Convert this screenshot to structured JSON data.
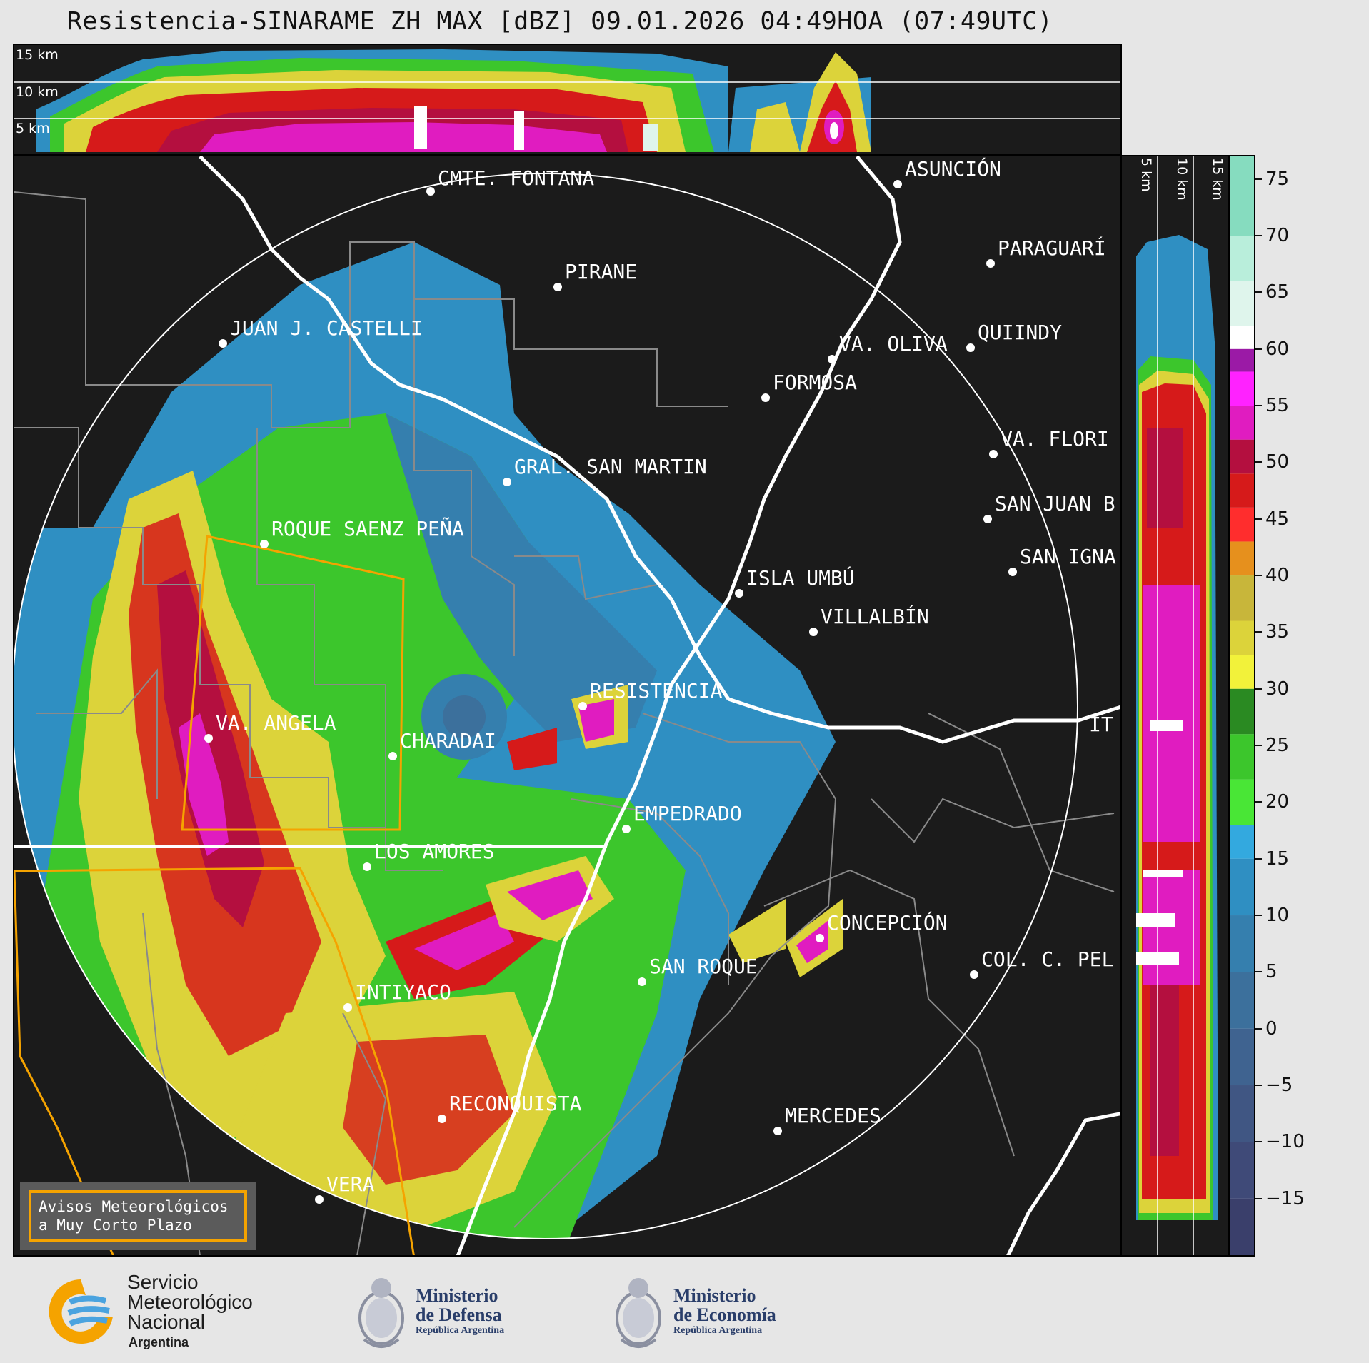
{
  "title": "Resistencia-SINARAME ZH MAX [dBZ] 09.01.2026 04:49HOA (07:49UTC)",
  "top_panel": {
    "altitude_labels": [
      "15 km",
      "10 km",
      "5 km"
    ]
  },
  "side_panel": {
    "altitude_labels": [
      "5 km",
      "10 km",
      "15 km"
    ]
  },
  "colorbar": {
    "unit": "dBZ",
    "ticks": [
      "75",
      "70",
      "65",
      "60",
      "55",
      "50",
      "45",
      "40",
      "35",
      "30",
      "25",
      "20",
      "15",
      "10",
      "5",
      "0",
      "−5",
      "−10",
      "−15"
    ],
    "tick_values": [
      75,
      70,
      65,
      60,
      55,
      50,
      45,
      40,
      35,
      30,
      25,
      20,
      15,
      10,
      5,
      0,
      -5,
      -10,
      -15
    ],
    "range": [
      -20,
      77
    ],
    "bands": [
      {
        "from": -20,
        "to": -15,
        "color": "#3a3f6b"
      },
      {
        "from": -15,
        "to": -10,
        "color": "#3f4a78"
      },
      {
        "from": -10,
        "to": -5,
        "color": "#405683"
      },
      {
        "from": -5,
        "to": 0,
        "color": "#3f6390"
      },
      {
        "from": 0,
        "to": 5,
        "color": "#3c709c"
      },
      {
        "from": 5,
        "to": 10,
        "color": "#357fae"
      },
      {
        "from": 10,
        "to": 15,
        "color": "#2f8fc2"
      },
      {
        "from": 15,
        "to": 18,
        "color": "#33a9df"
      },
      {
        "from": 18,
        "to": 22,
        "color": "#49e636"
      },
      {
        "from": 22,
        "to": 26,
        "color": "#3cc62c"
      },
      {
        "from": 26,
        "to": 30,
        "color": "#2a8a22"
      },
      {
        "from": 30,
        "to": 33,
        "color": "#f2f23a"
      },
      {
        "from": 33,
        "to": 36,
        "color": "#dcd33a"
      },
      {
        "from": 36,
        "to": 40,
        "color": "#c8b63a"
      },
      {
        "from": 40,
        "to": 43,
        "color": "#e6901d"
      },
      {
        "from": 43,
        "to": 46,
        "color": "#ff2d2d"
      },
      {
        "from": 46,
        "to": 49,
        "color": "#d61a1a"
      },
      {
        "from": 49,
        "to": 52,
        "color": "#b40f3f"
      },
      {
        "from": 52,
        "to": 55,
        "color": "#e01cc0"
      },
      {
        "from": 55,
        "to": 58,
        "color": "#ff22ff"
      },
      {
        "from": 58,
        "to": 60,
        "color": "#9b1aa6"
      },
      {
        "from": 60,
        "to": 62,
        "color": "#ffffff"
      },
      {
        "from": 62,
        "to": 66,
        "color": "#dff5ec"
      },
      {
        "from": 66,
        "to": 70,
        "color": "#b9eedb"
      },
      {
        "from": 70,
        "to": 77,
        "color": "#86dcbf"
      }
    ]
  },
  "map": {
    "cities": [
      {
        "name": "CMTE. FONTANA"
      },
      {
        "name": "ASUNCIÓN"
      },
      {
        "name": "PIRANE"
      },
      {
        "name": "PARAGUARÍ"
      },
      {
        "name": "JUAN J. CASTELLI"
      },
      {
        "name": "VA. OLIVA"
      },
      {
        "name": "QUIINDY"
      },
      {
        "name": "FORMOSA"
      },
      {
        "name": "VA. FLORI"
      },
      {
        "name": "GRAL. SAN MARTIN"
      },
      {
        "name": "SAN JUAN B"
      },
      {
        "name": "ROQUE SAENZ PEÑA"
      },
      {
        "name": "SAN IGNA"
      },
      {
        "name": "ISLA UMBÚ"
      },
      {
        "name": "VILLALBÍN"
      },
      {
        "name": "RESISTENCIA"
      },
      {
        "name": "VA. ANGELA"
      },
      {
        "name": "CHARADAI"
      },
      {
        "name": "IT"
      },
      {
        "name": "EMPEDRADO"
      },
      {
        "name": "LOS AMORES"
      },
      {
        "name": "CONCEPCIÓN"
      },
      {
        "name": "COL. C. PEL"
      },
      {
        "name": "SAN ROQUE"
      },
      {
        "name": "INTIYACO"
      },
      {
        "name": "RECONQUISTA"
      },
      {
        "name": "MERCEDES"
      },
      {
        "name": "VERA"
      }
    ]
  },
  "legend": {
    "line1": "Avisos Meteorológicos",
    "line2": "a Muy Corto Plazo",
    "border_color": "#f5a300"
  },
  "logos": {
    "smn": {
      "line1": "Servicio",
      "line2": "Meteorológico",
      "line3": "Nacional",
      "line4": "Argentina"
    },
    "defensa": {
      "line1": "Ministerio",
      "line2": "de Defensa",
      "line3": "República Argentina"
    },
    "economia": {
      "line1": "Ministerio",
      "line2": "de Economía",
      "line3": "República Argentina"
    }
  }
}
